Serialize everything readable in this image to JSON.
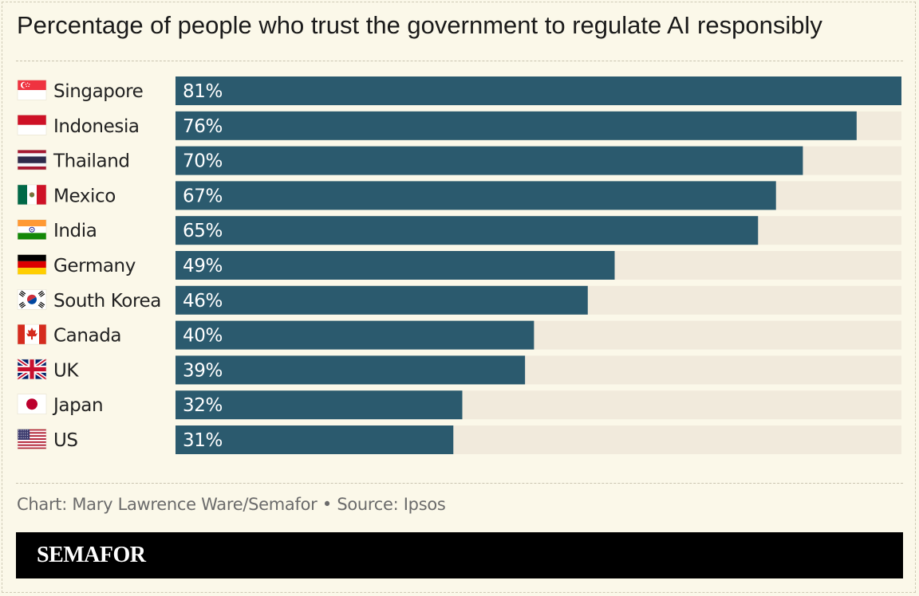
{
  "title": "Percentage of people who trust the government to regulate AI responsibly",
  "source": "Chart: Mary Lawrence Ware/Semafor • Source: Ipsos",
  "brand": "SEMAFOR",
  "colors": {
    "bar": "#2b5a6e",
    "track": "#f1eadc",
    "background": "#fbf8e9",
    "label_text": "#222222",
    "value_text": "#ffffff"
  },
  "chart_data": {
    "type": "bar",
    "orientation": "horizontal",
    "categories": [
      "Singapore",
      "Indonesia",
      "Thailand",
      "Mexico",
      "India",
      "Germany",
      "South Korea",
      "Canada",
      "UK",
      "Japan",
      "US"
    ],
    "values": [
      81,
      76,
      70,
      67,
      65,
      49,
      46,
      40,
      39,
      32,
      31
    ],
    "value_labels": [
      "81%",
      "76%",
      "70%",
      "67%",
      "65%",
      "49%",
      "46%",
      "40%",
      "39%",
      "32%",
      "31%"
    ],
    "category_icons": [
      "singapore-flag-icon",
      "indonesia-flag-icon",
      "thailand-flag-icon",
      "mexico-flag-icon",
      "india-flag-icon",
      "germany-flag-icon",
      "south-korea-flag-icon",
      "canada-flag-icon",
      "uk-flag-icon",
      "japan-flag-icon",
      "us-flag-icon"
    ],
    "xlim": [
      0,
      81
    ],
    "title": "Percentage of people who trust the government to regulate AI responsibly",
    "xlabel": "",
    "ylabel": "",
    "grid": false,
    "legend": "none"
  }
}
